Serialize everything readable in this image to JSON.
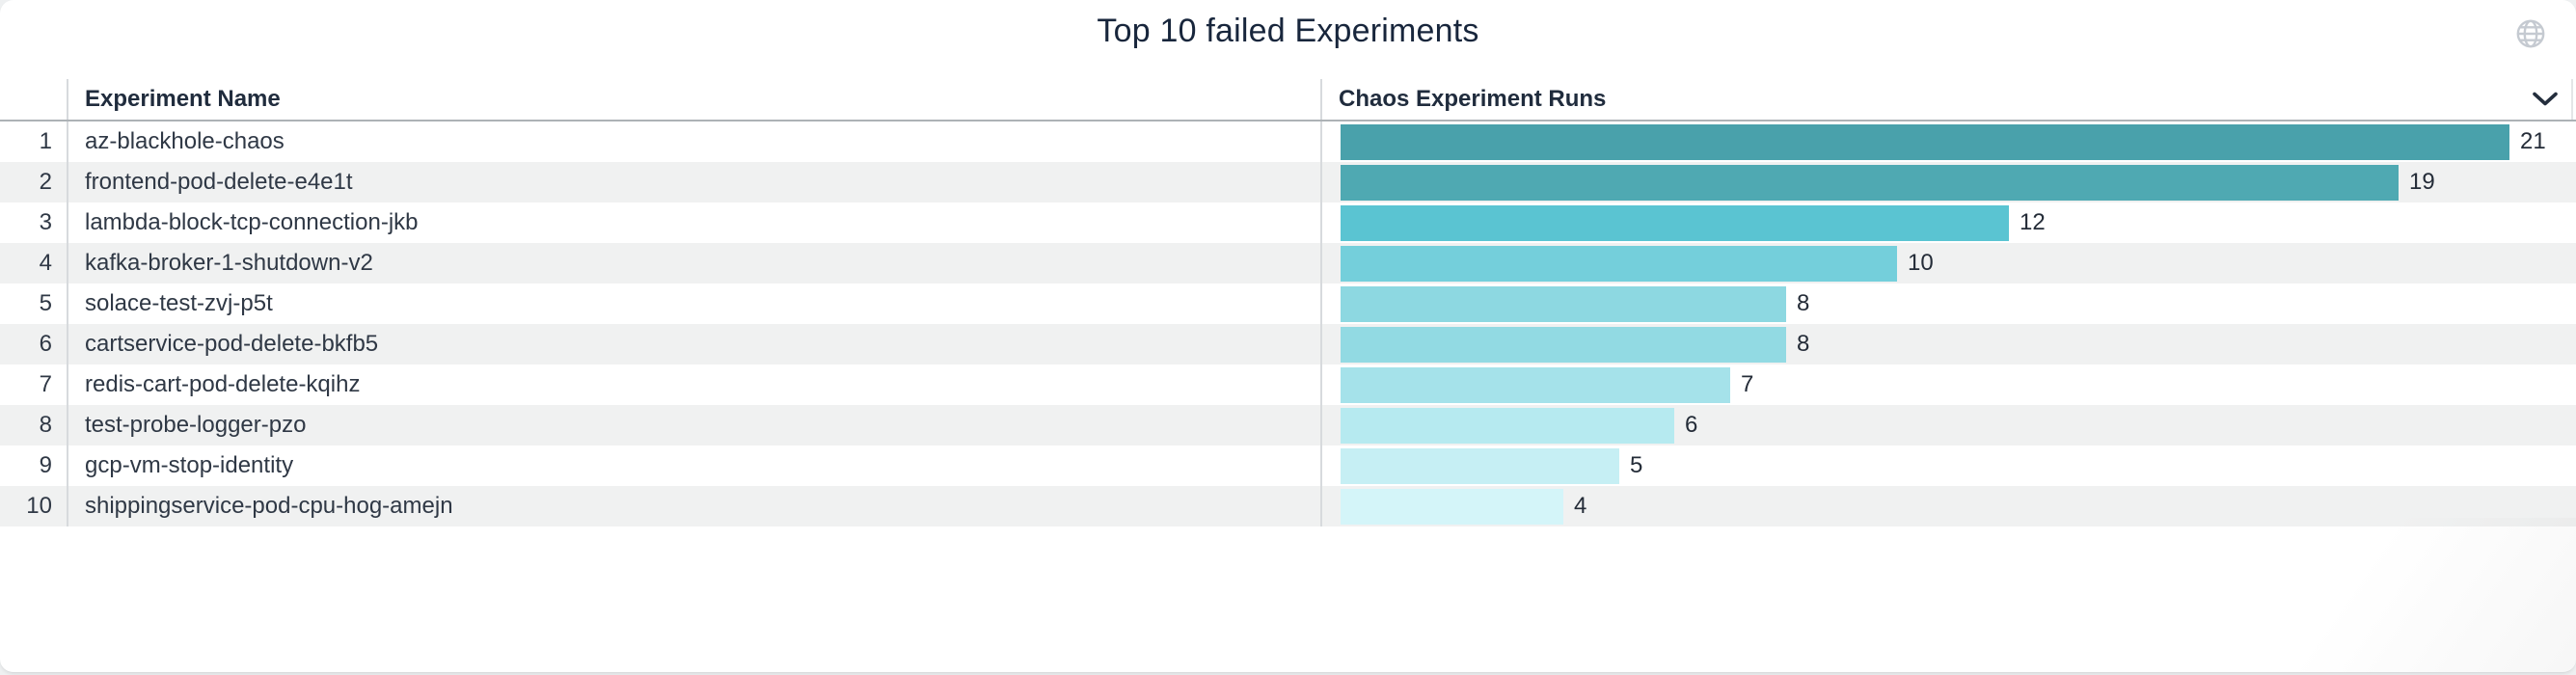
{
  "panel": {
    "title": "Top 10 failed Experiments"
  },
  "table": {
    "columns": {
      "name": "Experiment Name",
      "runs": "Chaos Experiment Runs"
    },
    "rows": [
      {
        "rank": "1",
        "name": "az-blackhole-chaos",
        "runs": 21
      },
      {
        "rank": "2",
        "name": "frontend-pod-delete-e4e1t",
        "runs": 19
      },
      {
        "rank": "3",
        "name": "lambda-block-tcp-connection-jkb",
        "runs": 12
      },
      {
        "rank": "4",
        "name": "kafka-broker-1-shutdown-v2",
        "runs": 10
      },
      {
        "rank": "5",
        "name": "solace-test-zvj-p5t",
        "runs": 8
      },
      {
        "rank": "6",
        "name": "cartservice-pod-delete-bkfb5",
        "runs": 8
      },
      {
        "rank": "7",
        "name": "redis-cart-pod-delete-kqihz",
        "runs": 7
      },
      {
        "rank": "8",
        "name": "test-probe-logger-pzo",
        "runs": 6
      },
      {
        "rank": "9",
        "name": "gcp-vm-stop-identity",
        "runs": 5
      },
      {
        "rank": "10",
        "name": "shippingservice-pod-cpu-hog-amejn",
        "runs": 4
      }
    ]
  },
  "chart_data": {
    "type": "bar",
    "orientation": "horizontal",
    "title": "Top 10 failed Experiments",
    "categories": [
      "az-blackhole-chaos",
      "frontend-pod-delete-e4e1t",
      "lambda-block-tcp-connection-jkb",
      "kafka-broker-1-shutdown-v2",
      "solace-test-zvj-p5t",
      "cartservice-pod-delete-bkfb5",
      "redis-cart-pod-delete-kqihz",
      "test-probe-logger-pzo",
      "gcp-vm-stop-identity",
      "shippingservice-pod-cpu-hog-amejn"
    ],
    "values": [
      21,
      19,
      12,
      10,
      8,
      8,
      7,
      6,
      5,
      4
    ],
    "value_axis_label": "Chaos Experiment Runs",
    "xlim": [
      0,
      21
    ],
    "data_labels": true,
    "grid": false,
    "legend": false,
    "bar_colors": [
      "#49a1ab",
      "#4fa9b2",
      "#5ac4d2",
      "#74cfdb",
      "#8dd8e1",
      "#92dae3",
      "#a5e2ea",
      "#b6eaf0",
      "#c6eff4",
      "#d4f5f9"
    ]
  },
  "icons": {
    "globe": "globe-icon",
    "column_menu": "chevron-down-icon"
  },
  "colors": {
    "title_text": "#18263c",
    "header_text": "#202c3d",
    "row_text": "#2f3845",
    "row_stripe": "#f0f1f1",
    "header_divider": "#adb2b6",
    "column_separator": "#d7dadd",
    "icon_gray": "#c5cad1"
  }
}
